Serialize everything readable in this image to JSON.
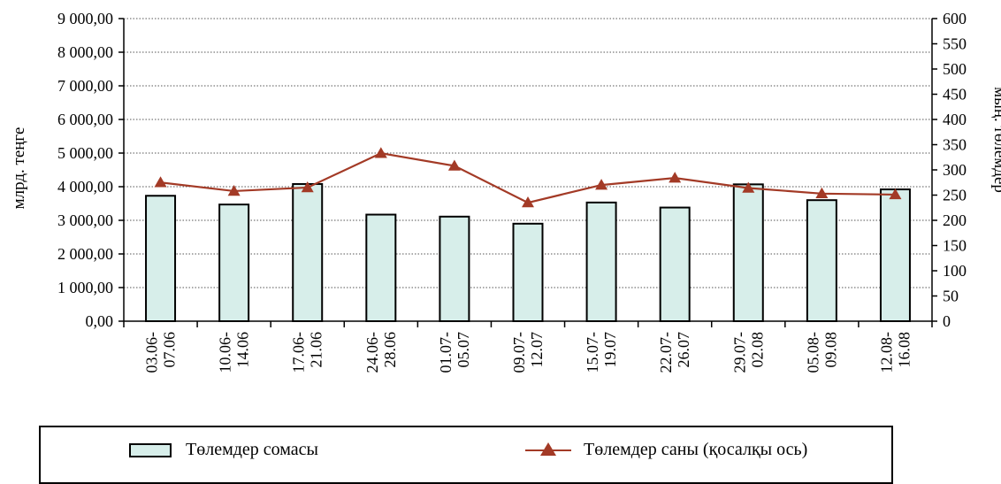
{
  "chart_data": {
    "type": "bar+line",
    "title": "",
    "categories": [
      [
        "03.06-",
        "07.06"
      ],
      [
        "10.06-",
        "14.06"
      ],
      [
        "17.06-",
        "21.06"
      ],
      [
        "24.06-",
        "28.06"
      ],
      [
        "01.07-",
        "05.07"
      ],
      [
        "09.07-",
        "12.07"
      ],
      [
        "15.07-",
        "19.07"
      ],
      [
        "22.07-",
        "26.07"
      ],
      [
        "29.07-",
        "02.08"
      ],
      [
        "05.08-",
        "09.08"
      ],
      [
        "12.08-",
        "16.08"
      ]
    ],
    "series": [
      {
        "name": "Төлемдер сомасы",
        "type": "bar",
        "axis": "left",
        "color": "#d7eeea",
        "values": [
          3730,
          3470,
          4080,
          3170,
          3110,
          2900,
          3530,
          3380,
          4070,
          3600,
          3920
        ]
      },
      {
        "name": "Төлемдер саны (қосалқы ось)",
        "type": "line",
        "axis": "right",
        "color": "#a33a26",
        "values": [
          275,
          258,
          265,
          333,
          308,
          235,
          270,
          284,
          264,
          253,
          251
        ]
      }
    ],
    "ylabel": "млрд. теңге",
    "ylim": [
      0,
      9000
    ],
    "yticks": [
      0,
      1000,
      2000,
      3000,
      4000,
      5000,
      6000,
      7000,
      8000,
      9000
    ],
    "ytick_labels": [
      "0,00",
      "1 000,00",
      "2 000,00",
      "3 000,00",
      "4 000,00",
      "5 000,00",
      "6 000,00",
      "7 000,00",
      "8 000,00",
      "9 000,00"
    ],
    "y2label": "мың. төлемдер",
    "y2lim": [
      0,
      600
    ],
    "y2ticks": [
      0,
      50,
      100,
      150,
      200,
      250,
      300,
      350,
      400,
      450,
      500,
      550,
      600
    ],
    "y2tick_labels": [
      "0",
      "50",
      "100",
      "150",
      "200",
      "250",
      "300",
      "350",
      "400",
      "450",
      "500",
      "550",
      "600"
    ],
    "grid": true,
    "legend_position": "bottom"
  },
  "legend": {
    "bar_label": "Төлемдер сомасы",
    "line_label": "Төлемдер саны (қосалқы ось)"
  }
}
